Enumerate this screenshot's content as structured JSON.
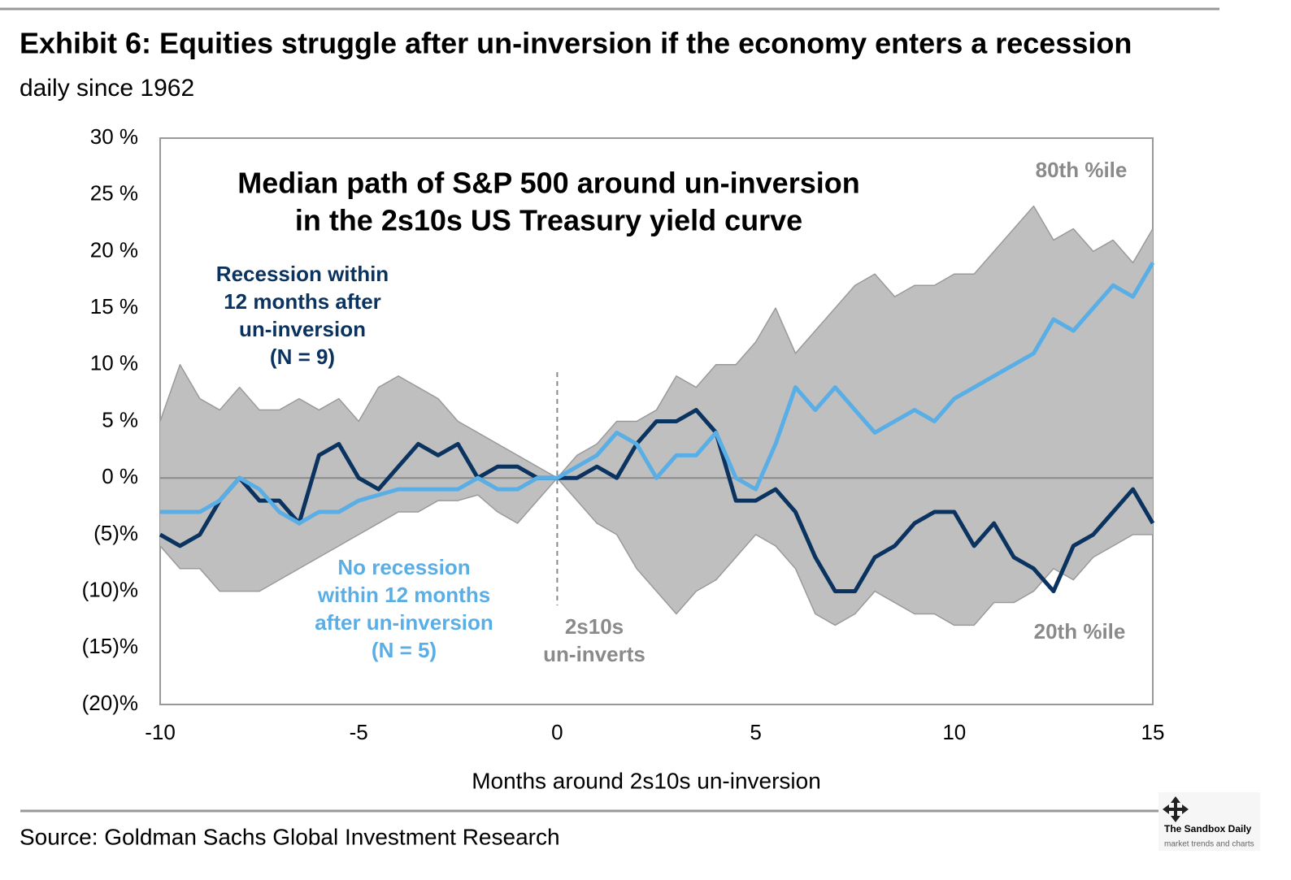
{
  "chart_data": {
    "type": "line",
    "title": "Exhibit 6: Equities struggle after un-inversion if the economy enters a recession",
    "subtitle": "daily since 1962",
    "inner_title": [
      "Median path of S&P 500 around un-inversion",
      "in the 2s10s US Treasury yield curve"
    ],
    "x_label": "Months around 2s10s un-inversion",
    "source": "Source: Goldman Sachs Global Investment Research",
    "watermark": [
      "The Sandbox Daily",
      "market trends and charts"
    ],
    "vline": {
      "x": 0,
      "label": [
        "2s10s",
        "un-inverts"
      ]
    },
    "xlim": [
      -10,
      15
    ],
    "ylim": [
      -20,
      30
    ],
    "xticks": [
      -10,
      -5,
      0,
      5,
      10,
      15
    ],
    "yticks": [
      {
        "value": 30,
        "label": "30 %"
      },
      {
        "value": 25,
        "label": "25 %"
      },
      {
        "value": 20,
        "label": "20 %"
      },
      {
        "value": 15,
        "label": "15 %"
      },
      {
        "value": 10,
        "label": "10 %"
      },
      {
        "value": 5,
        "label": "5 %"
      },
      {
        "value": 0,
        "label": "0 %"
      },
      {
        "value": -5,
        "label": "(5)%"
      },
      {
        "value": -10,
        "label": "(10)%"
      },
      {
        "value": -15,
        "label": "(15)%"
      },
      {
        "value": -20,
        "label": "(20)%"
      }
    ],
    "x": [
      -10,
      -9.5,
      -9,
      -8.5,
      -8,
      -7.5,
      -7,
      -6.5,
      -6,
      -5.5,
      -5,
      -4.5,
      -4,
      -3.5,
      -3,
      -2.5,
      -2,
      -1.5,
      -1,
      -0.5,
      0,
      0.5,
      1,
      1.5,
      2,
      2.5,
      3,
      3.5,
      4,
      4.5,
      5,
      5.5,
      6,
      6.5,
      7,
      7.5,
      8,
      8.5,
      9,
      9.5,
      10,
      10.5,
      11,
      11.5,
      12,
      12.5,
      13,
      13.5,
      14,
      14.5,
      15
    ],
    "series": [
      {
        "label": "80th %ile",
        "role": "band-upper",
        "color": "#9a9a9a",
        "values": [
          5,
          10,
          7,
          6,
          8,
          6,
          6,
          7,
          6,
          7,
          5,
          8,
          9,
          8,
          7,
          5,
          4,
          3,
          2,
          1,
          0,
          2,
          3,
          5,
          5,
          6,
          9,
          8,
          10,
          10,
          12,
          15,
          11,
          13,
          15,
          17,
          18,
          16,
          17,
          17,
          18,
          18,
          20,
          22,
          24,
          21,
          22,
          20,
          21,
          19,
          22
        ]
      },
      {
        "label": "20th %ile",
        "role": "band-lower",
        "color": "#9a9a9a",
        "values": [
          -6,
          -8,
          -8,
          -10,
          -10,
          -10,
          -9,
          -8,
          -7,
          -6,
          -5,
          -4,
          -3,
          -3,
          -2,
          -2,
          -1.5,
          -3,
          -4,
          -2,
          0,
          -2,
          -4,
          -5,
          -8,
          -10,
          -12,
          -10,
          -9,
          -7,
          -5,
          -6,
          -8,
          -12,
          -13,
          -12,
          -10,
          -11,
          -12,
          -12,
          -13,
          -13,
          -11,
          -11,
          -10,
          -8,
          -9,
          -7,
          -6,
          -5,
          -5
        ]
      },
      {
        "label": [
          "Recession within",
          "12 months after",
          "un-inversion",
          "(N = 9)"
        ],
        "color": "#0b3360",
        "values": [
          -5,
          -6,
          -5,
          -2,
          0,
          -2,
          -2,
          -4,
          2,
          3,
          0,
          -1,
          1,
          3,
          2,
          3,
          0,
          1,
          1,
          0,
          0,
          0,
          1,
          0,
          3,
          5,
          5,
          6,
          4,
          -2,
          -2,
          -1,
          -3,
          -7,
          -10,
          -10,
          -7,
          -6,
          -4,
          -3,
          -3,
          -6,
          -4,
          -7,
          -8,
          -10,
          -6,
          -5,
          -3,
          -1,
          -4
        ]
      },
      {
        "label": [
          "No recession",
          "within 12 months",
          "after un-inversion",
          "(N = 5)"
        ],
        "color": "#5aaee6",
        "values": [
          -3,
          -3,
          -3,
          -2,
          0,
          -1,
          -3,
          -4,
          -3,
          -3,
          -2,
          -1.5,
          -1,
          -1,
          -1,
          -1,
          0,
          -1,
          -1,
          0,
          0,
          1,
          2,
          4,
          3,
          0,
          2,
          2,
          4,
          0,
          -1,
          3,
          8,
          6,
          8,
          6,
          4,
          5,
          6,
          5,
          7,
          8,
          9,
          10,
          11,
          14,
          13,
          15,
          17,
          16,
          19
        ]
      }
    ]
  }
}
